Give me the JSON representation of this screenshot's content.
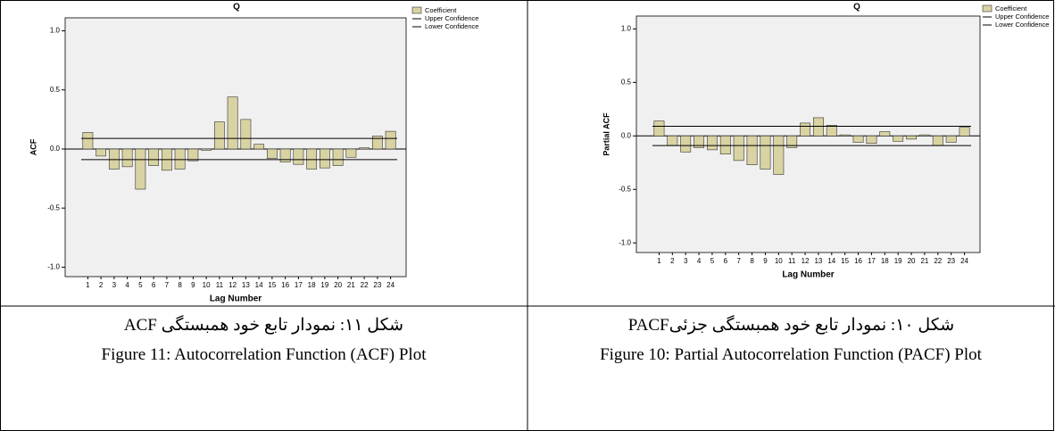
{
  "chart_data": [
    {
      "type": "bar",
      "title": "Q",
      "x_label": "Lag Number",
      "y_label": "ACF",
      "categories": [
        "1",
        "2",
        "3",
        "4",
        "5",
        "6",
        "7",
        "8",
        "9",
        "10",
        "11",
        "12",
        "13",
        "14",
        "15",
        "16",
        "17",
        "18",
        "19",
        "20",
        "21",
        "22",
        "23",
        "24"
      ],
      "series": [
        {
          "name": "Coefficient",
          "color": "#d9d3a3",
          "values": [
            0.14,
            -0.06,
            -0.17,
            -0.15,
            -0.34,
            -0.14,
            -0.18,
            -0.17,
            -0.1,
            -0.01,
            0.23,
            0.44,
            0.25,
            0.04,
            -0.08,
            -0.11,
            -0.13,
            -0.17,
            -0.16,
            -0.14,
            -0.07,
            0.01,
            0.11,
            0.15
          ]
        }
      ],
      "reference_lines": [
        {
          "name": "Upper Confidence",
          "value": 0.09,
          "color": "#000000"
        },
        {
          "name": "Lower Confidence",
          "value": -0.09,
          "color": "#000000"
        }
      ],
      "ylim": [
        -1.08,
        1.11
      ],
      "yticks": [
        {
          "value": -1,
          "label": "-1.0"
        },
        {
          "value": -0.5,
          "label": "-0.5"
        },
        {
          "value": 0,
          "label": "0.0"
        },
        {
          "value": 0.5,
          "label": "0.5"
        },
        {
          "value": 1,
          "label": "1.0"
        }
      ],
      "legend": "right"
    },
    {
      "type": "bar",
      "title": "Q",
      "x_label": "Lag Number",
      "y_label": "Partial ACF",
      "categories": [
        "1",
        "2",
        "3",
        "4",
        "5",
        "6",
        "7",
        "8",
        "9",
        "10",
        "11",
        "12",
        "13",
        "14",
        "15",
        "16",
        "17",
        "18",
        "19",
        "20",
        "21",
        "22",
        "23",
        "24"
      ],
      "series": [
        {
          "name": "Coefficient",
          "color": "#d9d3a3",
          "values": [
            0.14,
            -0.09,
            -0.15,
            -0.11,
            -0.13,
            -0.17,
            -0.23,
            -0.27,
            -0.31,
            -0.36,
            -0.11,
            0.12,
            0.17,
            0.1,
            0.01,
            -0.06,
            -0.07,
            0.04,
            -0.05,
            -0.03,
            0.01,
            -0.09,
            -0.06,
            0.08
          ]
        }
      ],
      "reference_lines": [
        {
          "name": "Upper Confidence",
          "value": 0.09,
          "color": "#000000"
        },
        {
          "name": "Lower Confidence",
          "value": -0.09,
          "color": "#000000"
        }
      ],
      "ylim": [
        -1.09,
        1.12
      ],
      "yticks": [
        {
          "value": -1,
          "label": "-1.0"
        },
        {
          "value": -0.5,
          "label": "-0.5"
        },
        {
          "value": 0,
          "label": "0.0"
        },
        {
          "value": 0.5,
          "label": "0.5"
        },
        {
          "value": 1,
          "label": "1.0"
        }
      ],
      "legend": "right"
    }
  ],
  "captions": [
    {
      "fa": "شکل ۱۱:  نمودار تابع خود همبستگی ACF",
      "en": "Figure 11: Autocorrelation Function (ACF) Plot"
    },
    {
      "fa": "شکل ۱۰: نمودار تابع خود همبستگی جزئیPACF",
      "en": "Figure 10: Partial Autocorrelation Function (PACF) Plot"
    }
  ]
}
